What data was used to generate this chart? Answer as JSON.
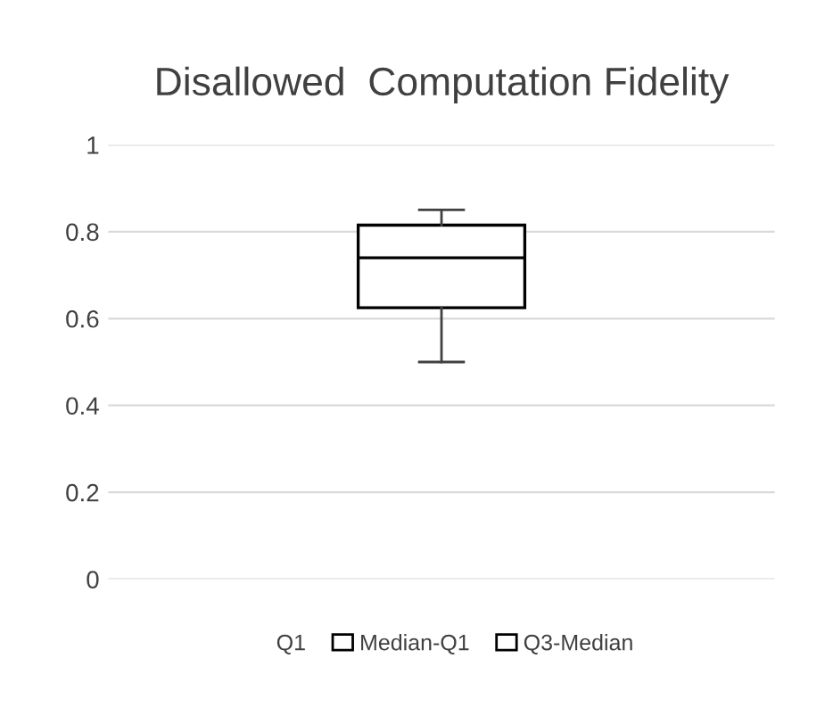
{
  "chart_data": {
    "type": "box",
    "title": "Disallowed  Computation Fidelity",
    "categories": [
      null
    ],
    "boxes": [
      {
        "low": 0.5,
        "q1": 0.625,
        "median": 0.74,
        "q3": 0.815,
        "high": 0.85
      }
    ],
    "annotations": [
      "Q1",
      "Median-Q1",
      "Q3-Median"
    ],
    "ylim": [
      0,
      1
    ],
    "yticks": [
      0,
      {
        "value": 0.2,
        "label": "0.2"
      },
      {
        "value": 0.4,
        "label": "0.4"
      },
      {
        "value": 0.6,
        "label": "0.6"
      },
      {
        "value": 0.8,
        "label": "0.8"
      },
      1
    ],
    "grid": "y"
  }
}
